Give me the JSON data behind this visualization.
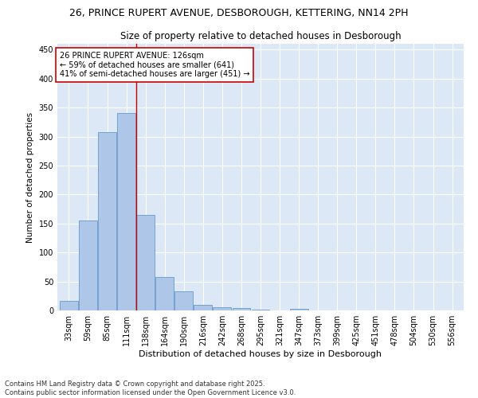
{
  "title1": "26, PRINCE RUPERT AVENUE, DESBOROUGH, KETTERING, NN14 2PH",
  "title2": "Size of property relative to detached houses in Desborough",
  "xlabel": "Distribution of detached houses by size in Desborough",
  "ylabel": "Number of detached properties",
  "categories": [
    "33sqm",
    "59sqm",
    "85sqm",
    "111sqm",
    "138sqm",
    "164sqm",
    "190sqm",
    "216sqm",
    "242sqm",
    "268sqm",
    "295sqm",
    "321sqm",
    "347sqm",
    "373sqm",
    "399sqm",
    "425sqm",
    "451sqm",
    "478sqm",
    "504sqm",
    "530sqm",
    "556sqm"
  ],
  "values": [
    16,
    155,
    308,
    341,
    165,
    57,
    33,
    10,
    6,
    4,
    2,
    0,
    3,
    0,
    0,
    0,
    0,
    0,
    0,
    0,
    0
  ],
  "bar_color": "#aec6e8",
  "bar_edge_color": "#6699cc",
  "vline_x": 3.5,
  "vline_color": "#cc0000",
  "annotation_text": "26 PRINCE RUPERT AVENUE: 126sqm\n← 59% of detached houses are smaller (641)\n41% of semi-detached houses are larger (451) →",
  "annotation_box_color": "#ffffff",
  "annotation_box_edge": "#cc0000",
  "ylim": [
    0,
    460
  ],
  "yticks": [
    0,
    50,
    100,
    150,
    200,
    250,
    300,
    350,
    400,
    450
  ],
  "background_color": "#dce8f5",
  "footer": "Contains HM Land Registry data © Crown copyright and database right 2025.\nContains public sector information licensed under the Open Government Licence v3.0.",
  "title1_fontsize": 9,
  "title2_fontsize": 8.5,
  "annotation_fontsize": 7,
  "footer_fontsize": 6,
  "tick_fontsize": 7,
  "ylabel_fontsize": 7.5,
  "xlabel_fontsize": 8
}
